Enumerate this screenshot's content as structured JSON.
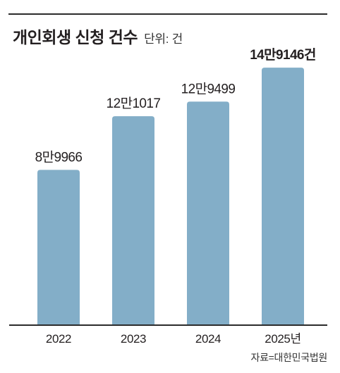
{
  "title": "개인회생 신청 건수",
  "unit_label": "단위: 건",
  "source": "자료=대한민국법원",
  "colors": {
    "bar": "#83aec8",
    "axis": "#2b2b2b",
    "text": "#231f20"
  },
  "chart_data": {
    "type": "bar",
    "title": "개인회생 신청 건수",
    "unit": "단위: 건",
    "categories": [
      "2022",
      "2023",
      "2024",
      "2025년"
    ],
    "values": [
      89966,
      121017,
      129499,
      149146
    ],
    "value_labels": [
      "8만9966",
      "12만1017",
      "12만9499",
      "14만9146건"
    ],
    "highlight_index": 3,
    "ylim": [
      0,
      170000
    ],
    "grid": false,
    "legend": "none"
  }
}
